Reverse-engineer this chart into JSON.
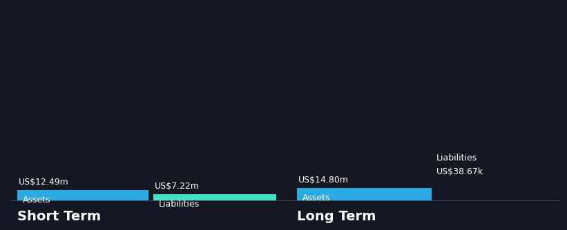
{
  "background_color": "#131722",
  "short_term": {
    "assets_value": 12.49,
    "assets_label": "Assets",
    "assets_value_label": "US$12.49m",
    "assets_color": "#29ABE2",
    "liabilities_value": 7.22,
    "liabilities_label": "Liabilities",
    "liabilities_value_label": "US$7.22m",
    "liabilities_color": "#40E0C0"
  },
  "long_term": {
    "assets_value": 14.8,
    "assets_label": "Assets",
    "assets_value_label": "US$14.80m",
    "assets_color": "#29ABE2",
    "liabilities_value": 0.03867,
    "liabilities_label": "Liabilities",
    "liabilities_value_label": "US$38.67k"
  },
  "short_term_label": "Short Term",
  "long_term_label": "Long Term",
  "text_color": "#FFFFFF",
  "axis_line_color": "#404060",
  "font_size_values": 9,
  "font_size_inner": 9,
  "font_size_section": 14
}
